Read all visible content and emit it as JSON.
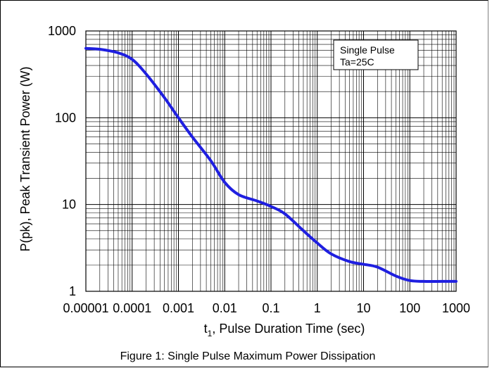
{
  "chart_data": {
    "type": "line",
    "title": "",
    "xlabel": "t1, Pulse Duration Time (sec)",
    "xlabel_main": "t",
    "xlabel_sub": "1",
    "xlabel_rest": ", Pulse Duration Time (sec)",
    "ylabel": "P(pk), Peak Transient Power (W)",
    "xscale": "log",
    "yscale": "log",
    "xlim": [
      1e-05,
      1000
    ],
    "ylim": [
      1,
      1000
    ],
    "grid": true,
    "x_tick_labels": [
      "0.00001",
      "0.0001",
      "0.001",
      "0.01",
      "0.1",
      "1",
      "10",
      "100",
      "1000"
    ],
    "y_tick_labels": [
      "1",
      "10",
      "100",
      "1000"
    ],
    "annotation": [
      "Single Pulse",
      "Ta=25C"
    ],
    "caption": "Figure 1:  Single Pulse Maximum Power Dissipation",
    "series": [
      {
        "color": "#1f1fe0",
        "x": [
          1e-05,
          2e-05,
          5e-05,
          0.0001,
          0.0002,
          0.0005,
          0.001,
          0.002,
          0.005,
          0.01,
          0.02,
          0.05,
          0.1,
          0.2,
          0.5,
          1,
          2,
          5,
          10,
          20,
          50,
          100,
          200,
          500,
          1000
        ],
        "y": [
          630,
          615,
          560,
          470,
          320,
          170,
          100,
          60,
          32,
          18,
          13,
          11,
          9.5,
          7.8,
          5,
          3.6,
          2.7,
          2.2,
          2.05,
          1.9,
          1.5,
          1.33,
          1.3,
          1.3,
          1.3
        ]
      }
    ]
  }
}
